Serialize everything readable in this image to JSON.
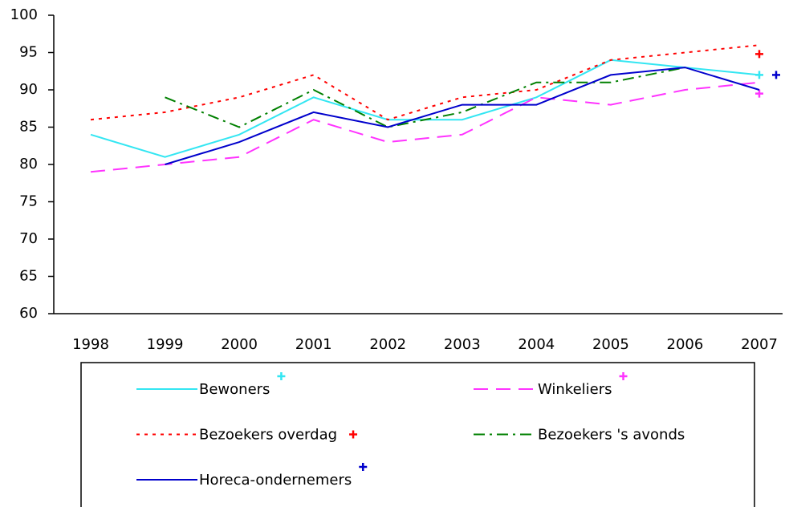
{
  "chart_data": {
    "type": "line",
    "categories": [
      "1998",
      "1999",
      "2000",
      "2001",
      "2002",
      "2003",
      "2004",
      "2005",
      "2006",
      "2007"
    ],
    "ylim": [
      60,
      100
    ],
    "yticks": [
      60,
      65,
      70,
      75,
      80,
      85,
      90,
      95,
      100
    ],
    "legend": "bottom",
    "series": [
      {
        "name": "Bewoners",
        "color": "#33e6f2",
        "dash": "none",
        "values": [
          84,
          81,
          84,
          89,
          86,
          86,
          89,
          94,
          93,
          92
        ],
        "target": 92
      },
      {
        "name": "Winkeliers",
        "color": "#ff33ff",
        "dash": "18,10",
        "values": [
          79,
          80,
          81,
          86,
          83,
          84,
          89,
          88,
          90,
          91
        ],
        "target": 89.5
      },
      {
        "name": "Bezoekers overdag",
        "color": "#ff0000",
        "dash": "4,6",
        "values": [
          86,
          87,
          89,
          92,
          86,
          89,
          90,
          94,
          95,
          96
        ],
        "target": 94.8
      },
      {
        "name": "Bezoekers 's avonds",
        "color": "#008000",
        "dash": "14,6,3,6",
        "values": [
          null,
          89,
          85,
          90,
          85,
          87,
          91,
          91,
          93,
          null
        ]
      },
      {
        "name": "Horeca-ondernemers",
        "color": "#0000cc",
        "dash": "none",
        "values": [
          null,
          80,
          83,
          87,
          85,
          88,
          88,
          92,
          93,
          90
        ],
        "target": 92
      }
    ]
  }
}
